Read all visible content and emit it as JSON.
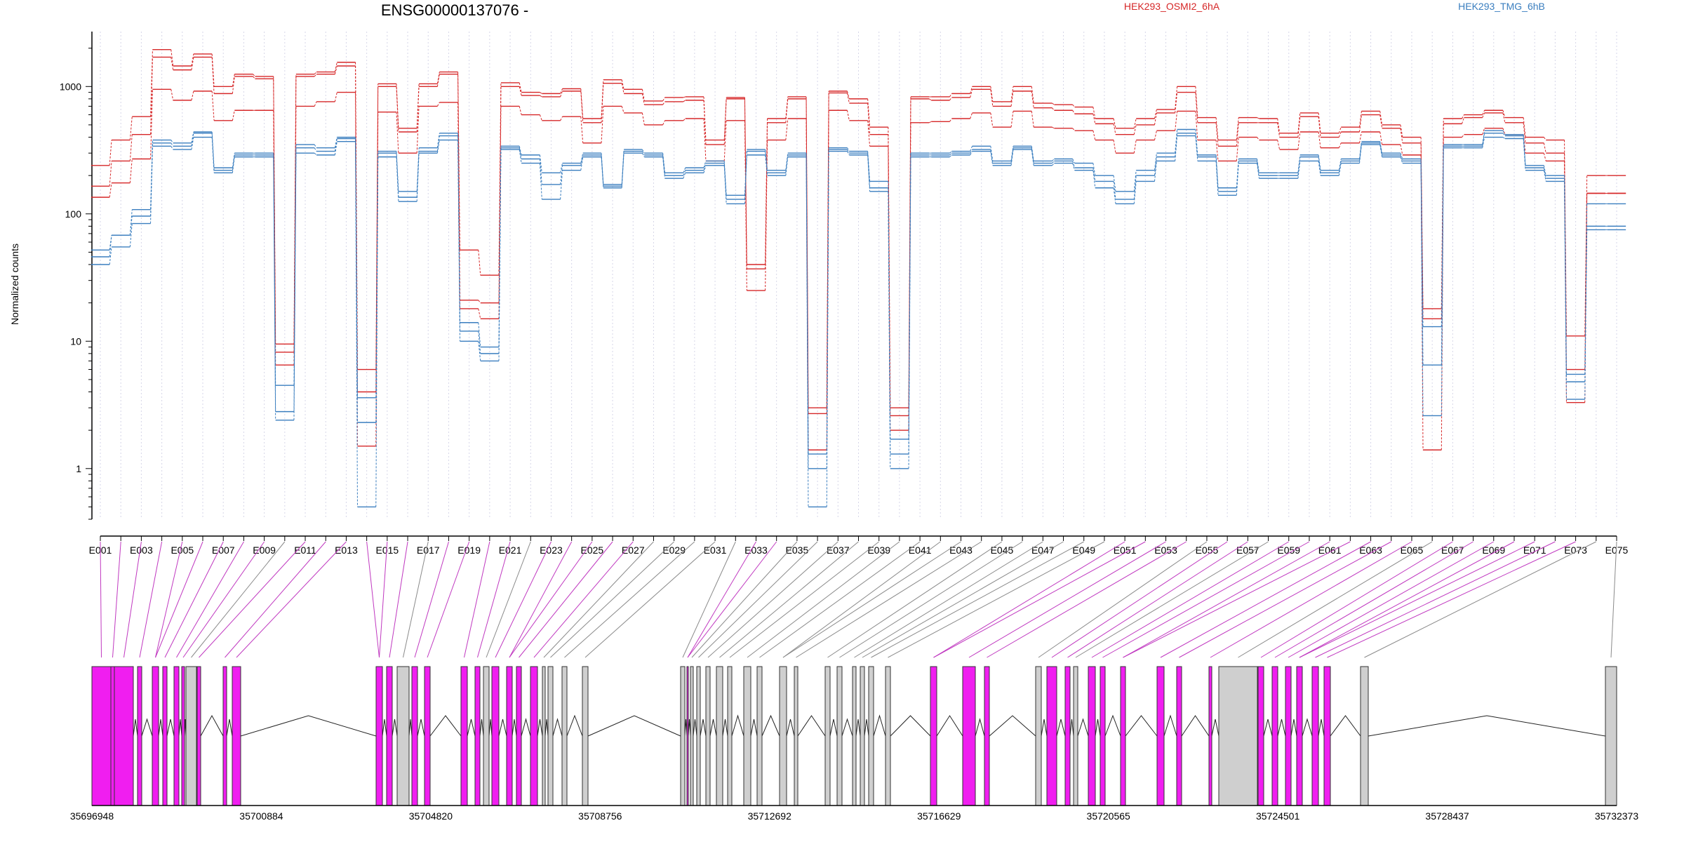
{
  "chart_data": {
    "type": "line",
    "title": "ENSG00000137076 -",
    "ylabel": "Normalized counts",
    "y_scale": "log",
    "ylim": [
      0.4,
      2700
    ],
    "y_ticks": [
      1,
      10,
      100,
      1000
    ],
    "y_tick_labels": [
      "1",
      "10",
      "100",
      "1000"
    ],
    "grid": "vertical dotted lines at each exon",
    "legend_position": "top",
    "categories": [
      "E001",
      "E002",
      "E003",
      "E004",
      "E005",
      "E006",
      "E007",
      "E008",
      "E009",
      "E010",
      "E011",
      "E012",
      "E013",
      "E014",
      "E015",
      "E016",
      "E017",
      "E018",
      "E019",
      "E020",
      "E021",
      "E022",
      "E023",
      "E024",
      "E025",
      "E026",
      "E027",
      "E028",
      "E029",
      "E030",
      "E031",
      "E032",
      "E033",
      "E034",
      "E035",
      "E036",
      "E037",
      "E038",
      "E039",
      "E040",
      "E041",
      "E042",
      "E043",
      "E044",
      "E045",
      "E046",
      "E047",
      "E048",
      "E049",
      "E050",
      "E051",
      "E052",
      "E053",
      "E054",
      "E055",
      "E056",
      "E057",
      "E058",
      "E059",
      "E060",
      "E061",
      "E062",
      "E063",
      "E064",
      "E065",
      "E066",
      "E067",
      "E068",
      "E069",
      "E070",
      "E071",
      "E072",
      "E073",
      "E074",
      "E075"
    ],
    "x_tick_labels": [
      "E001",
      "E003",
      "E005",
      "E007",
      "E009",
      "E011",
      "E013",
      "E015",
      "E017",
      "E019",
      "E021",
      "E023",
      "E025",
      "E027",
      "E029",
      "E031",
      "E033",
      "E035",
      "E037",
      "E039",
      "E041",
      "E043",
      "E045",
      "E047",
      "E049",
      "E051",
      "E053",
      "E055",
      "E057",
      "E059",
      "E061",
      "E063",
      "E065",
      "E067",
      "E069",
      "E071",
      "E073",
      "E075"
    ],
    "groups": [
      {
        "name": "HEK293_OSMI2_6hA",
        "color": "#d62728"
      },
      {
        "name": "HEK293_TMG_6hB",
        "color": "#3a7ebf"
      }
    ],
    "series": [
      {
        "group": "HEK293_OSMI2_6hA",
        "values": [
          240,
          380,
          580,
          1950,
          1450,
          1800,
          1000,
          1250,
          1200,
          9.5,
          1250,
          1300,
          1550,
          6.0,
          1050,
          470,
          1050,
          1300,
          52,
          33,
          1070,
          900,
          880,
          960,
          560,
          1130,
          950,
          770,
          820,
          830,
          380,
          820,
          40,
          560,
          830,
          3.0,
          920,
          800,
          480,
          3.0,
          830,
          830,
          880,
          1000,
          760,
          1000,
          740,
          720,
          690,
          560,
          470,
          560,
          660,
          1000,
          570,
          380,
          570,
          560,
          430,
          620,
          430,
          480,
          640,
          500,
          400,
          18,
          560,
          600,
          650,
          570,
          400,
          380,
          11,
          200,
          200
        ]
      },
      {
        "group": "HEK293_OSMI2_6hA",
        "values": [
          165,
          260,
          420,
          1700,
          1350,
          1700,
          880,
          1200,
          1150,
          8.2,
          1200,
          1250,
          1450,
          4.0,
          1000,
          440,
          1000,
          1250,
          21,
          20,
          1000,
          850,
          830,
          920,
          520,
          1060,
          880,
          720,
          760,
          780,
          350,
          800,
          37,
          520,
          800,
          2.7,
          890,
          740,
          420,
          2.6,
          800,
          780,
          820,
          950,
          700,
          920,
          680,
          650,
          610,
          510,
          420,
          500,
          620,
          900,
          520,
          340,
          520,
          520,
          400,
          580,
          400,
          440,
          600,
          470,
          360,
          15,
          510,
          570,
          620,
          520,
          360,
          300,
          6.0,
          145,
          145
        ]
      },
      {
        "group": "HEK293_OSMI2_6hA",
        "values": [
          135,
          175,
          270,
          950,
          780,
          920,
          540,
          650,
          650,
          6.5,
          700,
          760,
          900,
          1.5,
          630,
          300,
          700,
          750,
          18,
          15,
          700,
          600,
          540,
          580,
          360,
          700,
          620,
          500,
          540,
          560,
          260,
          540,
          25,
          380,
          560,
          1.4,
          650,
          540,
          340,
          2.0,
          520,
          530,
          560,
          620,
          480,
          640,
          480,
          470,
          450,
          380,
          300,
          380,
          450,
          640,
          380,
          260,
          400,
          380,
          320,
          440,
          330,
          360,
          440,
          350,
          290,
          1.4,
          400,
          420,
          470,
          420,
          300,
          260,
          3.3,
          145,
          145
        ]
      },
      {
        "group": "HEK293_TMG_6hB",
        "values": [
          52,
          68,
          108,
          380,
          360,
          440,
          230,
          300,
          300,
          4.5,
          350,
          330,
          400,
          3.6,
          310,
          150,
          330,
          430,
          14,
          9,
          340,
          290,
          210,
          250,
          300,
          170,
          320,
          300,
          210,
          230,
          260,
          140,
          320,
          220,
          300,
          1.3,
          330,
          310,
          180,
          1.7,
          300,
          300,
          310,
          340,
          260,
          340,
          260,
          270,
          250,
          200,
          150,
          220,
          300,
          460,
          290,
          160,
          270,
          210,
          210,
          290,
          220,
          270,
          370,
          300,
          270,
          6.5,
          350,
          350,
          450,
          420,
          240,
          200,
          5.5,
          80,
          80
        ]
      },
      {
        "group": "HEK293_TMG_6hB",
        "values": [
          46,
          68,
          96,
          360,
          340,
          430,
          220,
          290,
          290,
          2.8,
          330,
          310,
          390,
          2.3,
          300,
          135,
          310,
          410,
          12,
          8,
          330,
          270,
          170,
          240,
          290,
          165,
          310,
          290,
          200,
          220,
          250,
          130,
          310,
          210,
          290,
          1.0,
          320,
          300,
          160,
          1.3,
          290,
          290,
          300,
          320,
          250,
          330,
          250,
          260,
          230,
          180,
          130,
          200,
          280,
          430,
          280,
          150,
          260,
          200,
          200,
          280,
          210,
          260,
          360,
          290,
          260,
          2.6,
          340,
          340,
          430,
          410,
          230,
          190,
          4.8,
          75,
          75
        ]
      },
      {
        "group": "HEK293_TMG_6hB",
        "values": [
          40,
          55,
          84,
          340,
          320,
          400,
          210,
          280,
          280,
          2.4,
          300,
          290,
          370,
          0.5,
          280,
          125,
          300,
          380,
          10,
          7,
          320,
          250,
          130,
          220,
          280,
          160,
          300,
          280,
          190,
          210,
          240,
          120,
          290,
          200,
          280,
          0.5,
          310,
          290,
          150,
          1.0,
          280,
          280,
          290,
          310,
          240,
          320,
          240,
          250,
          220,
          160,
          120,
          180,
          260,
          410,
          260,
          140,
          250,
          190,
          190,
          260,
          200,
          250,
          350,
          280,
          250,
          13,
          330,
          330,
          400,
          390,
          220,
          180,
          3.5,
          120,
          120
        ]
      }
    ],
    "gene_model": {
      "x_axis_labels": [
        "35696948",
        "35700884",
        "35704820",
        "35708756",
        "35712692",
        "35716629",
        "35720565",
        "35724501",
        "35728437",
        "35732373"
      ],
      "genomic_range": [
        35696948,
        35732373
      ]
    }
  }
}
